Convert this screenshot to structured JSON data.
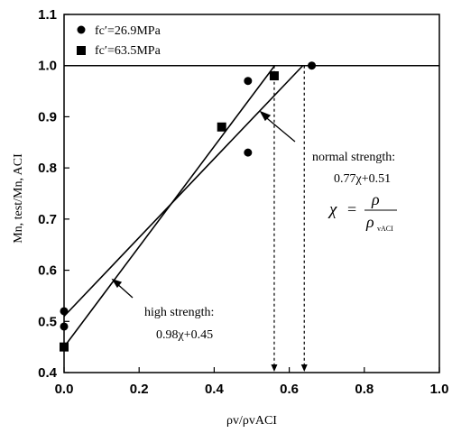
{
  "chart_data": {
    "type": "scatter",
    "xlabel": "ρv/ρvACI",
    "ylabel": "Mn, test/Mn, ACI",
    "xlim": [
      0,
      1.0
    ],
    "ylim": [
      0.4,
      1.1
    ],
    "x_ticks": [
      "0.0",
      "0.2",
      "0.4",
      "0.6",
      "0.8",
      "1.0"
    ],
    "y_ticks": [
      "0.4",
      "0.5",
      "0.6",
      "0.7",
      "0.8",
      "0.9",
      "1.0",
      "1.1"
    ],
    "grid": false,
    "legend_position": "top-left",
    "series": [
      {
        "name": "fc′=26.9MPa",
        "marker": "circle",
        "points": [
          [
            0.0,
            0.49
          ],
          [
            0.0,
            0.52
          ],
          [
            0.49,
            0.83
          ],
          [
            0.49,
            0.97
          ],
          [
            0.66,
            1.0
          ]
        ]
      },
      {
        "name": "fc′=63.5MPa",
        "marker": "square",
        "points": [
          [
            0.0,
            0.45
          ],
          [
            0.42,
            0.88
          ],
          [
            0.56,
            0.98
          ]
        ]
      }
    ],
    "fit_lines": [
      {
        "label": "normal strength:",
        "equation": "0.77χ+0.51",
        "slope": 0.77,
        "intercept": 0.51,
        "x_range": [
          0.0,
          0.636
        ]
      },
      {
        "label": "high strength:",
        "equation": "0.98χ+0.45",
        "slope": 0.98,
        "intercept": 0.45,
        "x_range": [
          0.0,
          0.561
        ]
      }
    ],
    "reference_line": {
      "y": 1.0
    },
    "drop_lines_x": [
      0.56,
      0.64
    ],
    "formula": {
      "lhs": "χ",
      "numerator": "ρ",
      "denominator": "ρ",
      "denominator_subscript": "vACI"
    }
  }
}
